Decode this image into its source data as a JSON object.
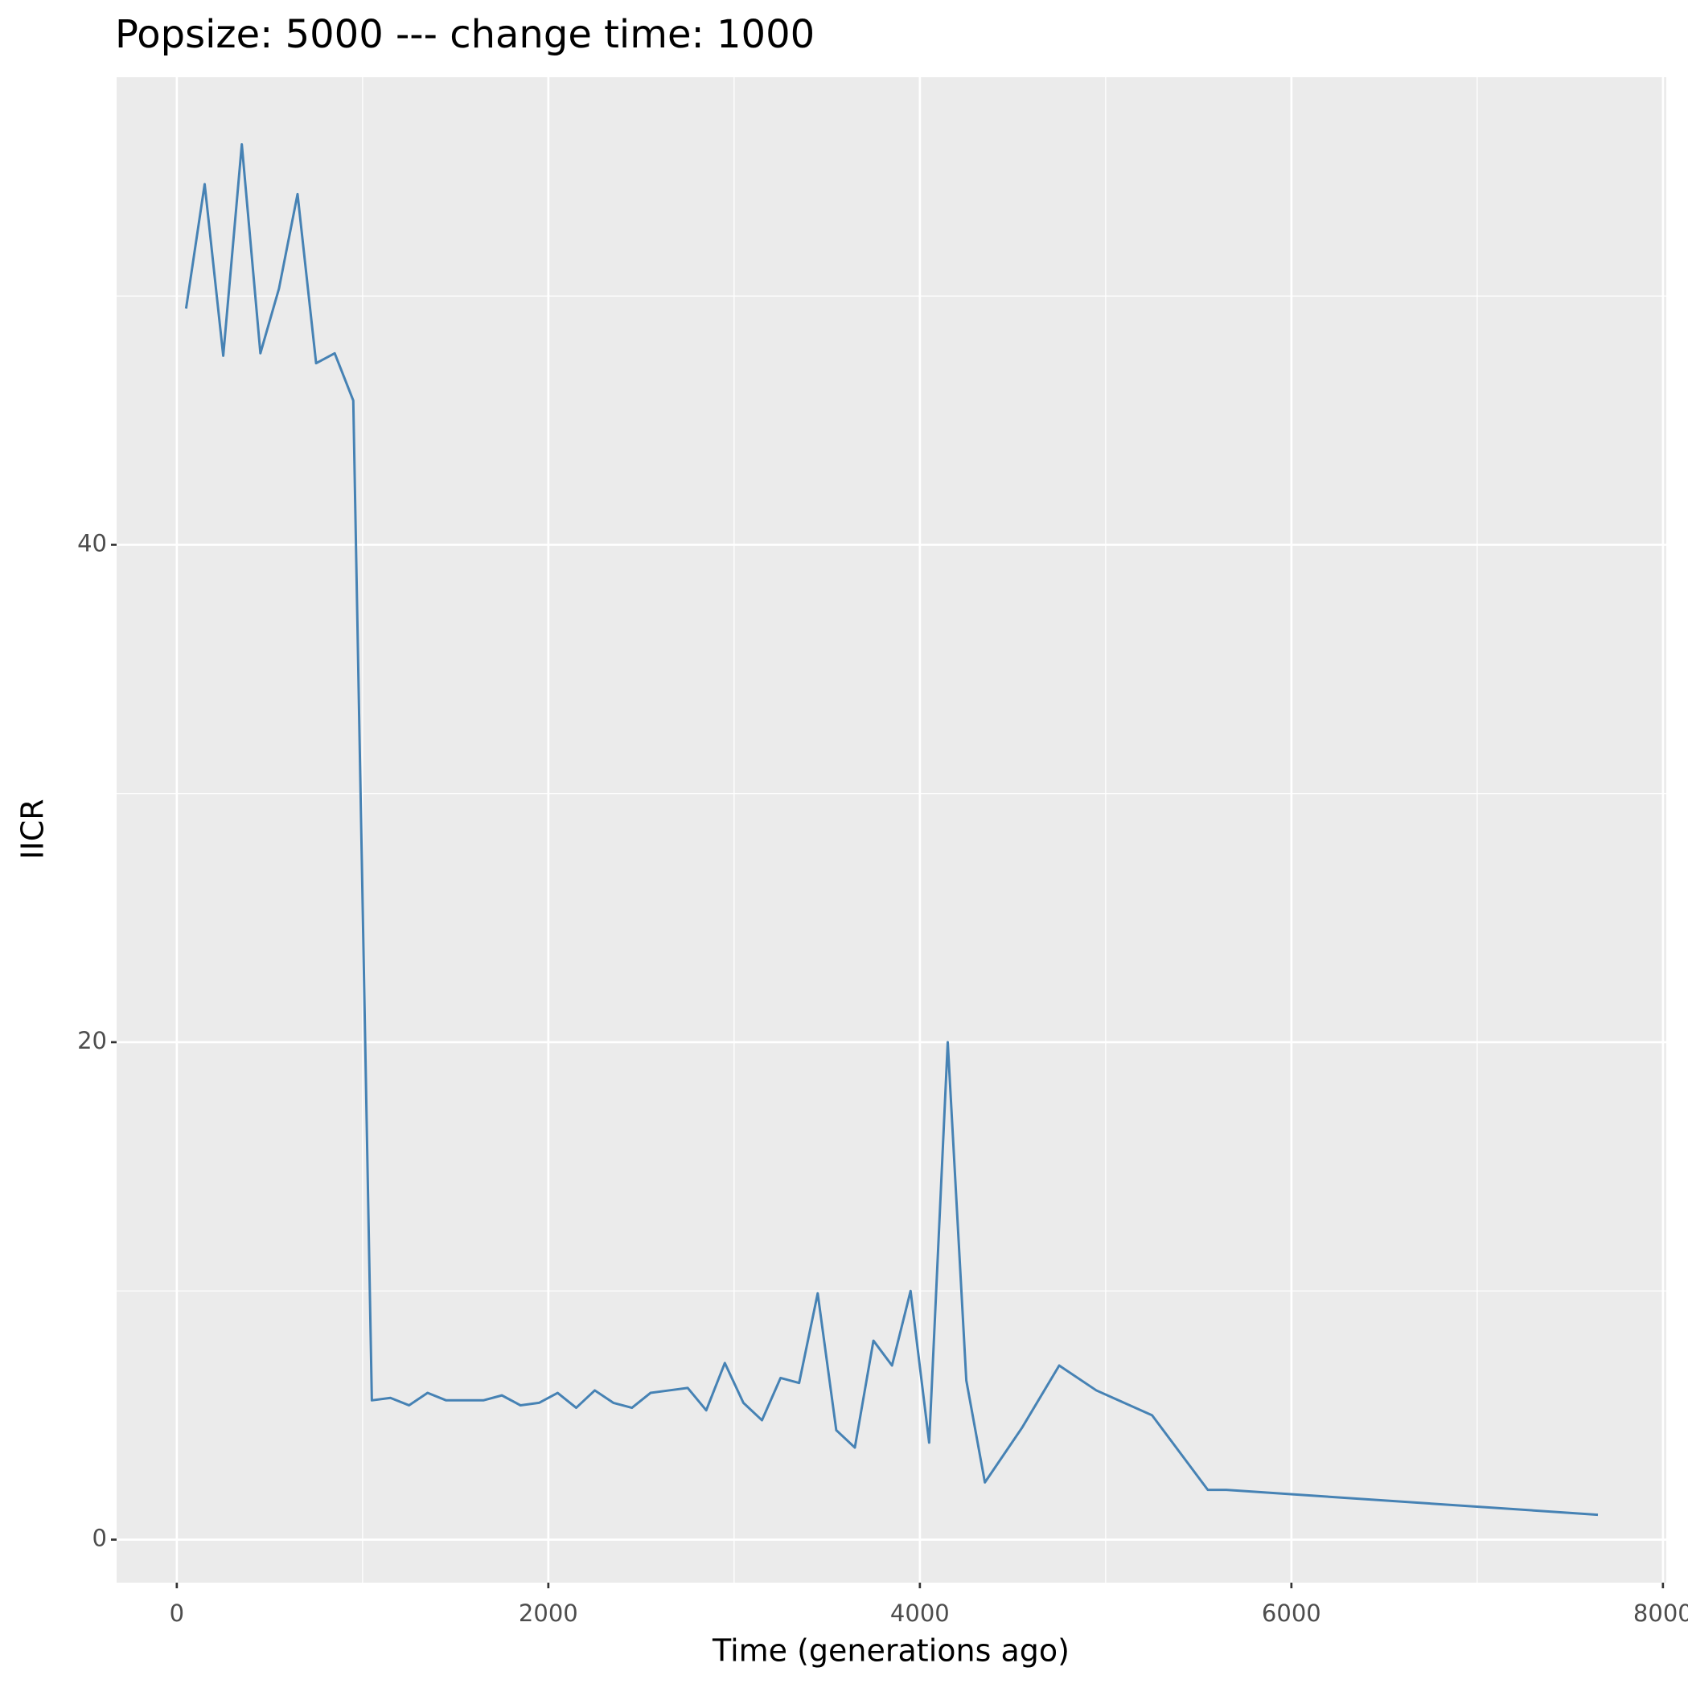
{
  "chart_data": {
    "type": "line",
    "title": "Popsize:  5000  --- change time:  1000",
    "x_label": "Time (generations ago)",
    "y_label": "IICR",
    "x": [
      50,
      150,
      250,
      350,
      450,
      550,
      650,
      750,
      850,
      950,
      1050,
      1150,
      1250,
      1350,
      1450,
      1650,
      1750,
      1850,
      1950,
      2050,
      2150,
      2250,
      2350,
      2450,
      2550,
      2650,
      2750,
      2850,
      2950,
      3050,
      3150,
      3250,
      3350,
      3450,
      3550,
      3650,
      3750,
      3850,
      3950,
      4050,
      4150,
      4250,
      4350,
      4550,
      4750,
      4950,
      5250,
      5550,
      5650,
      7650
    ],
    "series": [
      {
        "name": "IICR",
        "color": "#4682b4",
        "values": [
          49.5,
          54.5,
          47.6,
          56.1,
          47.7,
          50.3,
          54.1,
          47.3,
          47.7,
          45.8,
          5.6,
          5.7,
          5.4,
          5.9,
          5.6,
          5.6,
          5.8,
          5.4,
          5.5,
          5.9,
          5.3,
          6.0,
          5.5,
          5.3,
          5.9,
          6.0,
          6.1,
          5.2,
          7.1,
          5.5,
          4.8,
          6.5,
          6.3,
          9.9,
          4.4,
          3.7,
          8.0,
          7.0,
          10.0,
          3.9,
          20.0,
          6.4,
          2.3,
          4.5,
          7.0,
          6.0,
          5.0,
          2.0,
          2.0,
          1.0
        ]
      }
    ],
    "xlim": [
      -324,
      8018
    ],
    "ylim": [
      -1.73,
      58.8
    ],
    "xticks": [
      0,
      2000,
      4000,
      6000,
      8000
    ],
    "yticks": [
      0,
      20,
      40
    ],
    "x_minor_grid": [
      1000,
      3000,
      5000,
      7000
    ],
    "y_minor_grid": [
      10,
      30,
      50
    ],
    "grid": true
  }
}
